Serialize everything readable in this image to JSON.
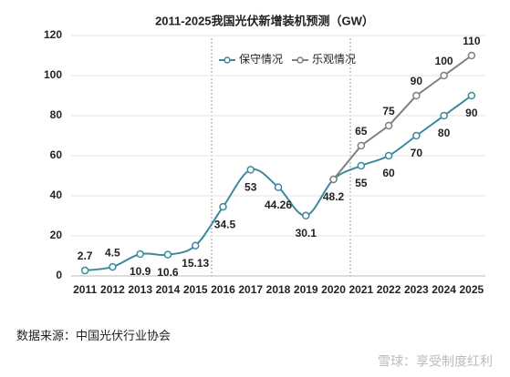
{
  "chart_data": {
    "type": "line",
    "title": "2011-2025我国光伏新增装机预测（GW）",
    "categories": [
      "2011",
      "2012",
      "2013",
      "2014",
      "2015",
      "2016",
      "2017",
      "2018",
      "2019",
      "2020",
      "2021",
      "2022",
      "2023",
      "2024",
      "2025"
    ],
    "series": [
      {
        "name": "保守情况",
        "color": "#3b8a9b",
        "smooth": true,
        "values": [
          2.7,
          4.5,
          10.9,
          10.6,
          15.13,
          34.5,
          53,
          44.26,
          30.1,
          48.2,
          55,
          60,
          70,
          80,
          90
        ]
      },
      {
        "name": "乐观情况",
        "color": "#7f7f7f",
        "smooth": false,
        "values": [
          null,
          null,
          null,
          null,
          null,
          null,
          null,
          null,
          null,
          48.2,
          65,
          75,
          90,
          100,
          110
        ]
      }
    ],
    "ylim": [
      0,
      120
    ],
    "yticks": [
      0,
      20,
      40,
      60,
      80,
      100,
      120
    ],
    "grid": true,
    "legend": "top",
    "source": "数据来源：中国光伏行业协会",
    "watermark": "雪球：享受制度红利"
  }
}
